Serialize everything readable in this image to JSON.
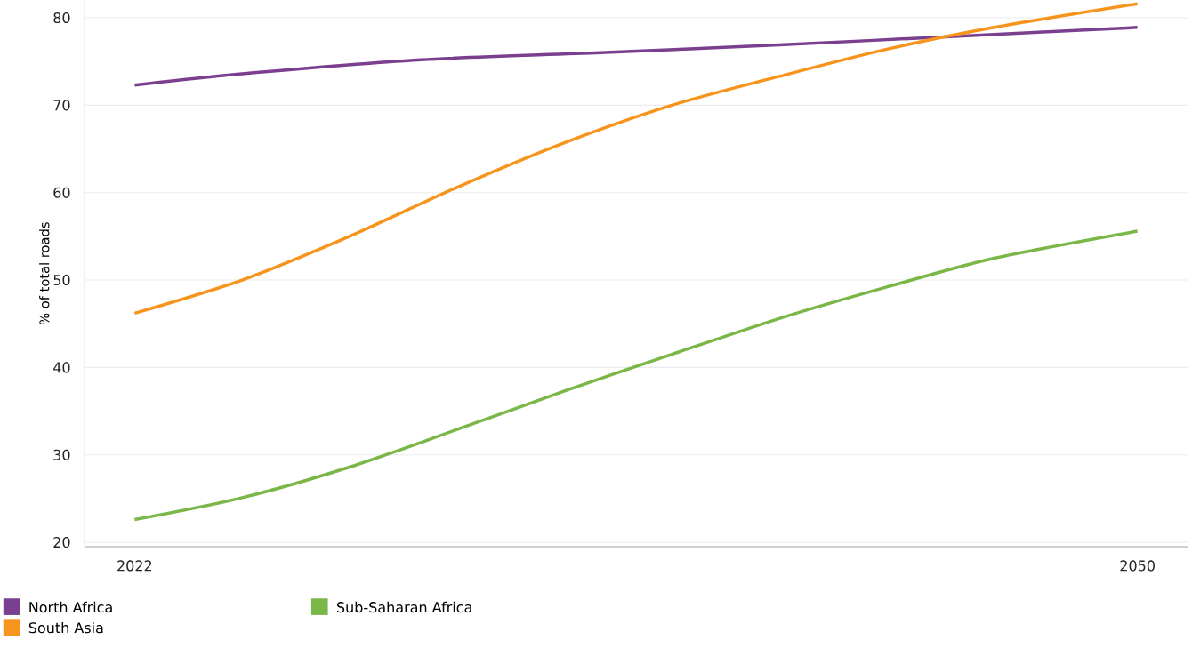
{
  "chart_data": {
    "type": "line",
    "ylabel": "% of total roads",
    "xlim": [
      2020.6,
      2051.4
    ],
    "ylim": [
      19.5,
      82
    ],
    "xticks": [
      2022,
      2050
    ],
    "yticks": [
      20,
      30,
      40,
      50,
      60,
      70,
      80
    ],
    "grid": "y",
    "legend": "bottom left",
    "marker": "none",
    "line_style": "solid",
    "series": [
      {
        "name": "North Africa",
        "color": "#7b3f8f",
        "x": [
          2022,
          2025,
          2030,
          2035,
          2040,
          2045,
          2050
        ],
        "values": [
          72.3,
          73.6,
          75.2,
          76.0,
          76.9,
          77.9,
          78.9
        ]
      },
      {
        "name": "South Asia",
        "color": "#f7941d",
        "x": [
          2022,
          2025,
          2028,
          2031,
          2034,
          2037,
          2040,
          2043,
          2046,
          2050
        ],
        "values": [
          46.2,
          50.0,
          55.0,
          60.6,
          65.7,
          70.0,
          73.3,
          76.4,
          78.9,
          81.6
        ]
      },
      {
        "name": "Sub-Saharan Africa",
        "color": "#7ab648",
        "x": [
          2022,
          2025,
          2028,
          2031,
          2034,
          2037,
          2040,
          2043,
          2046,
          2050
        ],
        "values": [
          22.6,
          25.1,
          28.6,
          32.9,
          37.3,
          41.5,
          45.6,
          49.2,
          52.5,
          55.6
        ]
      }
    ]
  }
}
